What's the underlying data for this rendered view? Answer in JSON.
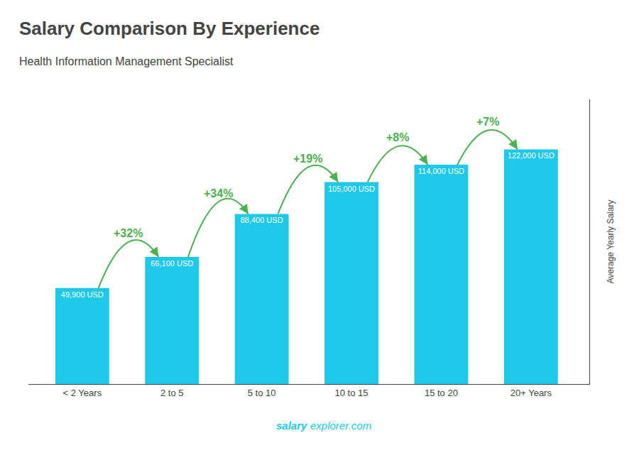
{
  "chart_data": {
    "type": "bar",
    "title": "Salary Comparison By Experience",
    "subtitle": "Health Information Management Specialist",
    "categories": [
      "< 2 Years",
      "2 to 5",
      "5 to 10",
      "10 to 15",
      "15 to 20",
      "20+ Years"
    ],
    "values": [
      49900,
      66100,
      88400,
      105000,
      114000,
      122000
    ],
    "value_labels": [
      "49,900 USD",
      "66,100 USD",
      "88,400 USD",
      "105,000 USD",
      "114,000 USD",
      "122,000 USD"
    ],
    "data_labels": true,
    "annotations": [
      "+32%",
      "+34%",
      "+19%",
      "+8%",
      "+7%"
    ],
    "ylabel": "Average Yearly Salary",
    "footer": [
      "salary",
      "explorer.com"
    ],
    "color": "#1EC8E8",
    "ylim": [
      0,
      148000
    ],
    "grid": false,
    "tick_labels": "x"
  }
}
